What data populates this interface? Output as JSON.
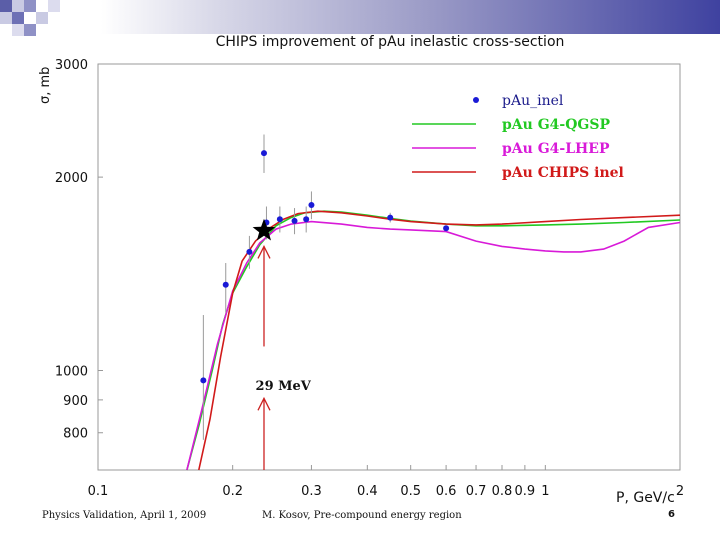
{
  "slide": {
    "footer_left": "Physics Validation, April 1, 2009",
    "footer_center": "M. Kosov, Pre-compound energy region",
    "page_number": "6",
    "accent_color": "#4b4fa6"
  },
  "chart_data": {
    "type": "line",
    "title": "CHIPS improvement of pAu inelastic cross-section",
    "xlabel": "P, GeV/c",
    "ylabel": "σ, mb",
    "xscale": "log",
    "yscale": "log",
    "xlim": [
      0.1,
      2
    ],
    "ylim": [
      700,
      3000
    ],
    "x_ticks": [
      {
        "value": 0.1,
        "label": "0.1"
      },
      {
        "value": 0.2,
        "label": "0.2"
      },
      {
        "value": 0.3,
        "label": "0.3"
      },
      {
        "value": 0.4,
        "label": "0.4"
      },
      {
        "value": 0.5,
        "label": "0.5"
      },
      {
        "value": 0.6,
        "label": "0.6"
      },
      {
        "value": 0.7,
        "label": "0.7"
      },
      {
        "value": 0.8,
        "label": "0.8"
      },
      {
        "value": 0.9,
        "label": "0.9"
      },
      {
        "value": 1.0,
        "label": "1"
      },
      {
        "value": 2.0,
        "label": "2"
      }
    ],
    "y_ticks": [
      {
        "value": 800,
        "label": "800"
      },
      {
        "value": 900,
        "label": "900"
      },
      {
        "value": 1000,
        "label": "1000"
      },
      {
        "value": 2000,
        "label": "2000"
      },
      {
        "value": 3000,
        "label": "3000"
      }
    ],
    "grid": false,
    "legend_position": "top-right",
    "series": [
      {
        "name": "pAu_inel",
        "kind": "points",
        "color": "#1a1ad6",
        "points": [
          {
            "x": 0.172,
            "y": 965,
            "lo": 780,
            "hi": 1220
          },
          {
            "x": 0.193,
            "y": 1360,
            "lo": 1230,
            "hi": 1470
          },
          {
            "x": 0.218,
            "y": 1530,
            "lo": 1440,
            "hi": 1620
          },
          {
            "x": 0.235,
            "y": 2180,
            "lo": 2030,
            "hi": 2330
          },
          {
            "x": 0.238,
            "y": 1700,
            "lo": 1600,
            "hi": 1800
          },
          {
            "x": 0.255,
            "y": 1720,
            "lo": 1640,
            "hi": 1800
          },
          {
            "x": 0.275,
            "y": 1710,
            "lo": 1630,
            "hi": 1790
          },
          {
            "x": 0.292,
            "y": 1720,
            "lo": 1640,
            "hi": 1800
          },
          {
            "x": 0.3,
            "y": 1810,
            "lo": 1720,
            "hi": 1900
          },
          {
            "x": 0.45,
            "y": 1730,
            "lo": 1700,
            "hi": 1760
          },
          {
            "x": 0.6,
            "y": 1665,
            "lo": 1650,
            "hi": 1680
          }
        ]
      },
      {
        "name": "pAu G4-QGSP",
        "kind": "line",
        "color": "#22c922",
        "points": [
          [
            0.158,
            700
          ],
          [
            0.168,
            820
          ],
          [
            0.18,
            1000
          ],
          [
            0.19,
            1180
          ],
          [
            0.2,
            1320
          ],
          [
            0.215,
            1450
          ],
          [
            0.23,
            1570
          ],
          [
            0.25,
            1680
          ],
          [
            0.27,
            1730
          ],
          [
            0.29,
            1760
          ],
          [
            0.32,
            1770
          ],
          [
            0.35,
            1765
          ],
          [
            0.4,
            1745
          ],
          [
            0.45,
            1725
          ],
          [
            0.5,
            1708
          ],
          [
            0.6,
            1690
          ],
          [
            0.7,
            1680
          ],
          [
            0.8,
            1680
          ],
          [
            1.0,
            1685
          ],
          [
            1.2,
            1690
          ],
          [
            1.5,
            1700
          ],
          [
            2.0,
            1715
          ]
        ]
      },
      {
        "name": "pAu G4-LHEP",
        "kind": "line",
        "color": "#d81ad8",
        "points": [
          [
            0.158,
            700
          ],
          [
            0.17,
            860
          ],
          [
            0.185,
            1100
          ],
          [
            0.2,
            1330
          ],
          [
            0.215,
            1470
          ],
          [
            0.23,
            1580
          ],
          [
            0.25,
            1660
          ],
          [
            0.27,
            1690
          ],
          [
            0.3,
            1705
          ],
          [
            0.35,
            1690
          ],
          [
            0.4,
            1670
          ],
          [
            0.45,
            1660
          ],
          [
            0.5,
            1655
          ],
          [
            0.6,
            1645
          ],
          [
            0.7,
            1590
          ],
          [
            0.8,
            1560
          ],
          [
            0.9,
            1545
          ],
          [
            1.0,
            1535
          ],
          [
            1.1,
            1530
          ],
          [
            1.2,
            1530
          ],
          [
            1.35,
            1545
          ],
          [
            1.5,
            1590
          ],
          [
            1.7,
            1670
          ],
          [
            2.0,
            1700
          ]
        ]
      },
      {
        "name": "pAu CHIPS inel",
        "kind": "line",
        "color": "#d11a1a",
        "points": [
          [
            0.168,
            700
          ],
          [
            0.178,
            840
          ],
          [
            0.188,
            1050
          ],
          [
            0.2,
            1320
          ],
          [
            0.21,
            1480
          ],
          [
            0.225,
            1590
          ],
          [
            0.24,
            1660
          ],
          [
            0.26,
            1720
          ],
          [
            0.28,
            1755
          ],
          [
            0.31,
            1770
          ],
          [
            0.35,
            1760
          ],
          [
            0.4,
            1740
          ],
          [
            0.45,
            1720
          ],
          [
            0.5,
            1705
          ],
          [
            0.6,
            1690
          ],
          [
            0.7,
            1685
          ],
          [
            0.8,
            1690
          ],
          [
            1.0,
            1705
          ],
          [
            1.2,
            1718
          ],
          [
            1.5,
            1730
          ],
          [
            2.0,
            1745
          ]
        ]
      }
    ],
    "annotations": [
      {
        "type": "star",
        "x": 0.235,
        "y": 1650,
        "color": "#000000"
      },
      {
        "type": "label",
        "text": "29 MeV",
        "x": 0.225,
        "y": 950
      },
      {
        "type": "arrow",
        "x": 0.235,
        "from_y": 1090,
        "to_y": 1560,
        "color": "#cc2222"
      },
      {
        "type": "arrow",
        "x": 0.235,
        "from_y": 700,
        "to_y": 905,
        "color": "#cc2222"
      }
    ]
  }
}
